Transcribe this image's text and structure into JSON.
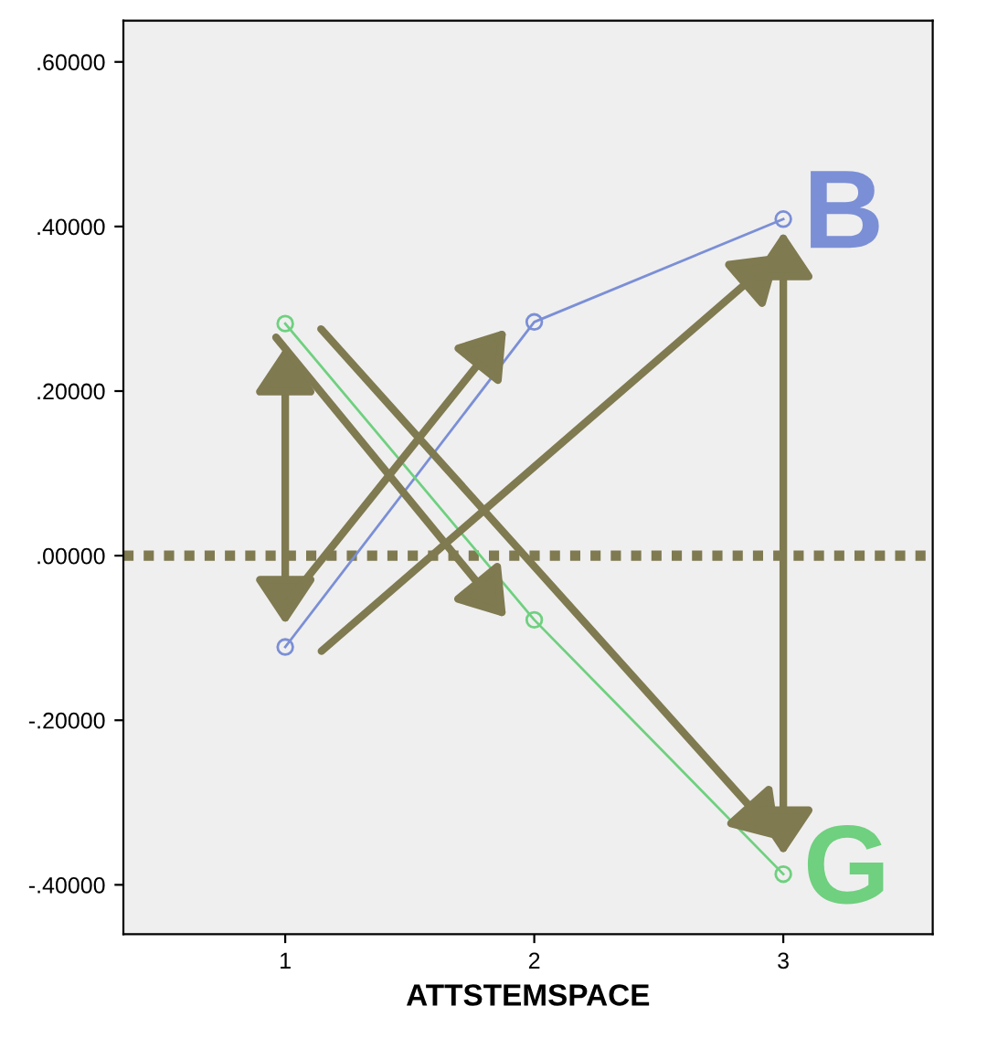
{
  "chart_data": {
    "type": "line",
    "xlabel": "ATTSTEMSPACE",
    "x": [
      1,
      2,
      3
    ],
    "series": [
      {
        "name": "B",
        "color": "#7b8fd6",
        "values": [
          -0.111,
          0.284,
          0.409
        ]
      },
      {
        "name": "G",
        "color": "#6fd07f",
        "values": [
          0.282,
          -0.078,
          -0.387
        ]
      }
    ],
    "xlim": [
      0.35,
      3.6
    ],
    "xticks": [
      1,
      2,
      3
    ],
    "ylim": [
      -0.46,
      0.65
    ],
    "yticks": [
      {
        "value": -0.4,
        "label": "-.40000"
      },
      {
        "value": -0.2,
        "label": "-.20000"
      },
      {
        "value": 0,
        "label": ".00000"
      },
      {
        "value": 0.2,
        "label": ".20000"
      },
      {
        "value": 0.4,
        "label": ".40000"
      },
      {
        "value": 0.6,
        "label": ".60000"
      }
    ],
    "ref_lines": [
      {
        "axis": "y",
        "value": 0,
        "color": "#7f7a50",
        "line_style": "dotted"
      }
    ],
    "marker": "circle",
    "line_style": "solid",
    "grid": false,
    "legend": false
  }
}
